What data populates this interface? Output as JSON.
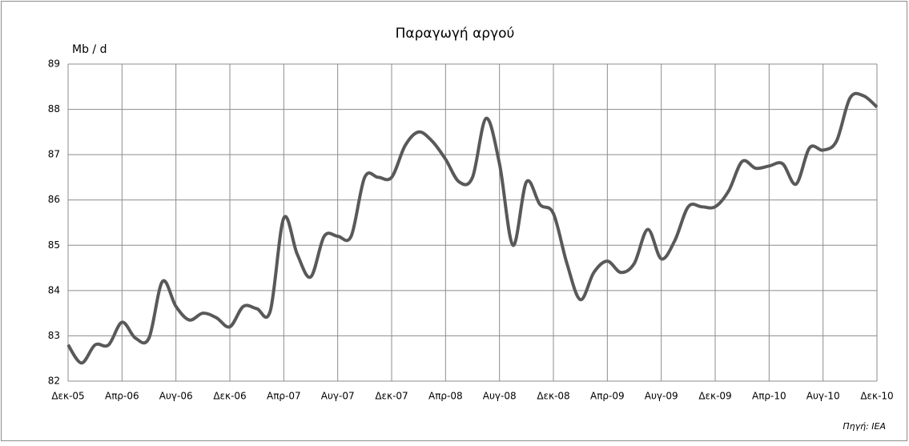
{
  "chart_data": {
    "type": "line",
    "title": "Παραγωγή αργού",
    "y_label": "Mb / d",
    "source": "Πηγή: IEA",
    "categories": [
      "Δεκ-05",
      null,
      null,
      null,
      "Απρ-06",
      null,
      null,
      null,
      "Αυγ-06",
      null,
      null,
      null,
      "Δεκ-06",
      null,
      null,
      null,
      "Απρ-07",
      null,
      null,
      null,
      "Αυγ-07",
      null,
      null,
      null,
      "Δεκ-07",
      null,
      null,
      null,
      "Απρ-08",
      null,
      null,
      null,
      "Αυγ-08",
      null,
      null,
      null,
      "Δεκ-08",
      null,
      null,
      null,
      "Απρ-09",
      null,
      null,
      null,
      "Αυγ-09",
      null,
      null,
      null,
      "Δεκ-09",
      null,
      null,
      null,
      "Απρ-10",
      null,
      null,
      null,
      "Αυγ-10",
      null,
      null,
      null,
      "Δεκ-10"
    ],
    "values": [
      82.8,
      82.4,
      82.8,
      82.8,
      83.3,
      82.95,
      82.95,
      84.2,
      83.65,
      83.35,
      83.5,
      83.4,
      83.2,
      83.65,
      83.6,
      83.55,
      85.6,
      84.8,
      84.3,
      85.2,
      85.2,
      85.2,
      86.5,
      86.5,
      86.5,
      87.2,
      87.5,
      87.3,
      86.9,
      86.4,
      86.5,
      87.8,
      86.8,
      85.0,
      86.4,
      85.9,
      85.7,
      84.6,
      83.8,
      84.4,
      84.65,
      84.4,
      84.6,
      85.35,
      84.7,
      85.1,
      85.85,
      85.85,
      85.85,
      86.2,
      86.85,
      86.7,
      86.75,
      86.8,
      86.35,
      87.15,
      87.1,
      87.3,
      88.25,
      88.3,
      88.05
    ],
    "color": "#595959",
    "ylim": [
      82,
      89
    ],
    "yticks": [
      82,
      83,
      84,
      85,
      86,
      87,
      88,
      89
    ],
    "grid": true
  }
}
